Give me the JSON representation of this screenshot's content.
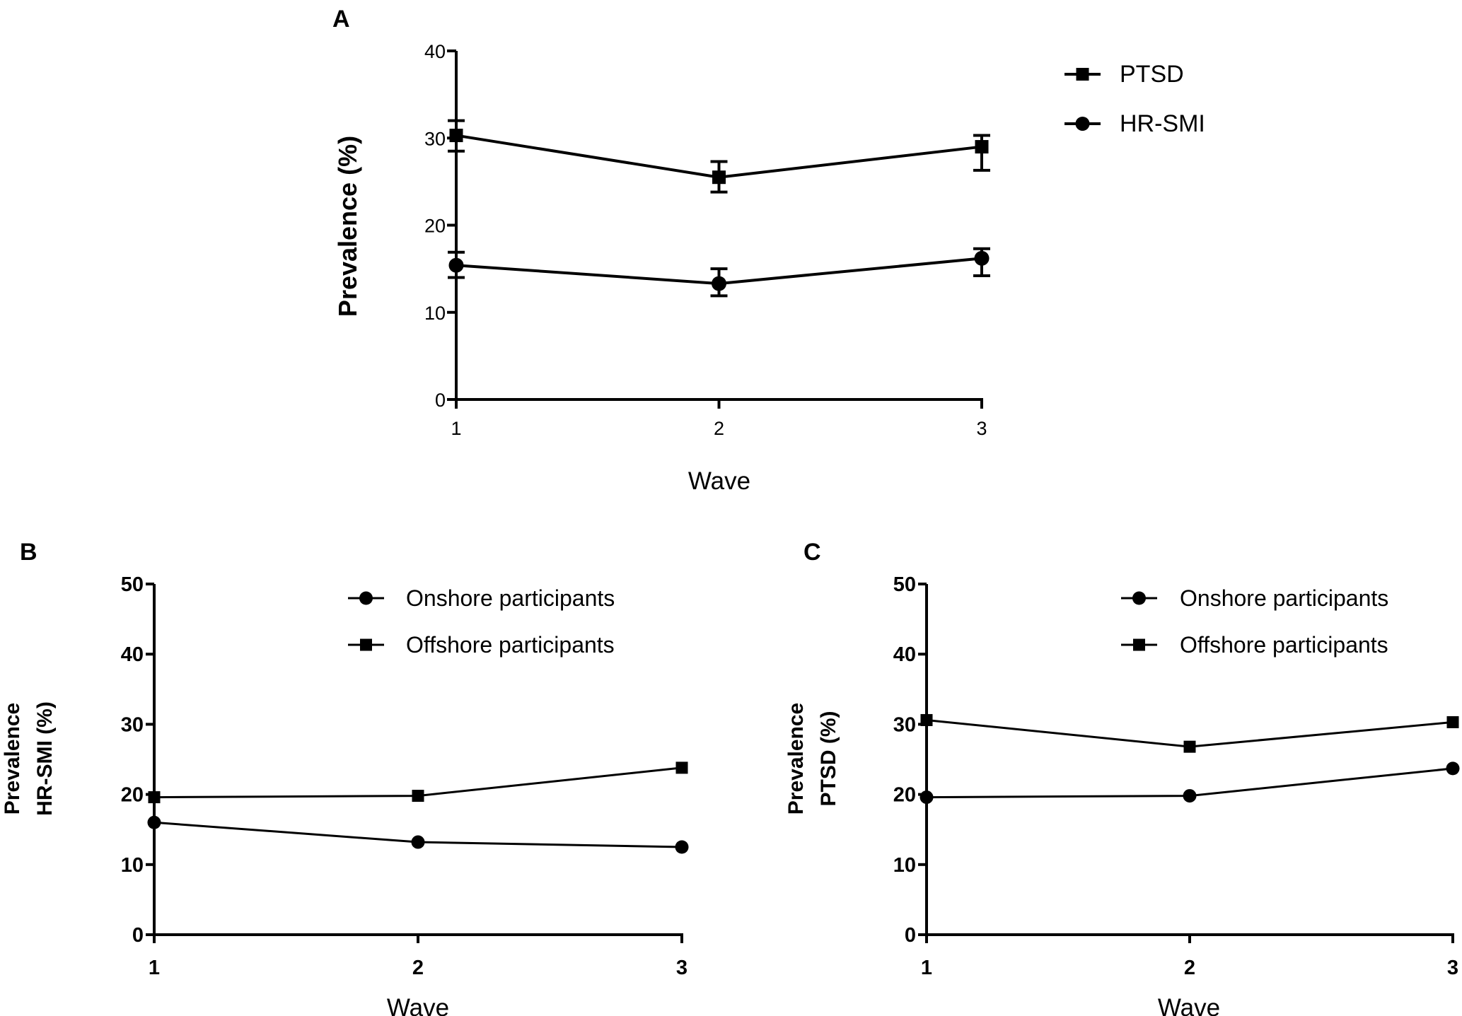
{
  "chart_data": [
    {
      "panel": "A",
      "type": "line",
      "title": "",
      "xlabel": "Wave",
      "ylabel": "Prevalence (%)",
      "x": [
        1,
        2,
        3
      ],
      "xticks": [
        "1",
        "2",
        "3"
      ],
      "ylim": [
        0,
        40
      ],
      "yticks": [
        "0",
        "10",
        "20",
        "30",
        "40"
      ],
      "grid": false,
      "legend_position": "top-right",
      "series": [
        {
          "name": "PTSD",
          "marker": "square",
          "values": [
            30.3,
            25.5,
            29.0
          ],
          "err_low": [
            28.5,
            23.8,
            26.3
          ],
          "err_high": [
            32.0,
            27.3,
            30.3
          ]
        },
        {
          "name": "HR-SMI",
          "marker": "circle",
          "values": [
            15.4,
            13.3,
            16.2
          ],
          "err_low": [
            14.0,
            11.9,
            14.2
          ],
          "err_high": [
            16.9,
            15.0,
            17.3
          ]
        }
      ]
    },
    {
      "panel": "B",
      "type": "line",
      "title": "",
      "xlabel": "Wave",
      "ylabel": [
        "Prevalence",
        "HR-SMI (%)"
      ],
      "x": [
        1,
        2,
        3
      ],
      "xticks": [
        "1",
        "2",
        "3"
      ],
      "ylim": [
        0,
        50
      ],
      "yticks": [
        "0",
        "10",
        "20",
        "30",
        "40",
        "50"
      ],
      "grid": false,
      "legend_position": "top-right",
      "series": [
        {
          "name": "Onshore participants",
          "marker": "circle",
          "values": [
            16.0,
            13.2,
            12.5
          ]
        },
        {
          "name": "Offshore participants",
          "marker": "square",
          "values": [
            19.6,
            19.8,
            23.8
          ]
        }
      ]
    },
    {
      "panel": "C",
      "type": "line",
      "title": "",
      "xlabel": "Wave",
      "ylabel": [
        "Prevalence",
        "PTSD (%)"
      ],
      "x": [
        1,
        2,
        3
      ],
      "xticks": [
        "1",
        "2",
        "3"
      ],
      "ylim": [
        0,
        50
      ],
      "yticks": [
        "0",
        "10",
        "20",
        "30",
        "40",
        "50"
      ],
      "grid": false,
      "legend_position": "top-right",
      "series": [
        {
          "name": "Onshore participants",
          "marker": "circle",
          "values": [
            19.6,
            19.8,
            23.7
          ]
        },
        {
          "name": "Offshore participants",
          "marker": "square",
          "values": [
            30.6,
            26.8,
            30.3
          ]
        }
      ]
    }
  ],
  "colors": {
    "ink": "#000000",
    "background": "#ffffff"
  }
}
